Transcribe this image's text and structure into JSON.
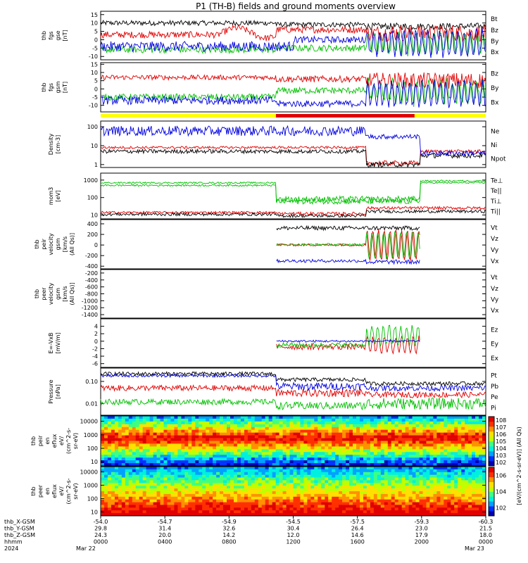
{
  "chart_data": {
    "type": "line",
    "title": "P1 (TH-B) fields and ground moments overview",
    "x_ticks": [
      {
        "hhmm": "0000",
        "x": "-54.0",
        "y": "29.8",
        "z": "24.3"
      },
      {
        "hhmm": "0400",
        "x": "-54.7",
        "y": "31.4",
        "z": "20.0"
      },
      {
        "hhmm": "0800",
        "x": "-54.9",
        "y": "32.6",
        "z": "14.2"
      },
      {
        "hhmm": "1200",
        "x": "-54.5",
        "y": "30.4",
        "z": "12.0"
      },
      {
        "hhmm": "1600",
        "x": "-57.5",
        "y": "26.4",
        "z": "14.6"
      },
      {
        "hhmm": "2000",
        "x": "-59.3",
        "y": "23.0",
        "z": "17.9"
      },
      {
        "hhmm": "0000",
        "x": "-60.3",
        "y": "21.5",
        "z": "18.0"
      }
    ],
    "row_labels": [
      "thb_X-GSM",
      "thb_Y-GSM",
      "thb_Z-GSM",
      "hhmm",
      "2024"
    ],
    "date_start": "Mar 22",
    "date_end": "Mar 23",
    "panels": [
      {
        "ylabel": [
          "thb",
          "fgs",
          "gse",
          "[nT]"
        ],
        "yticks": [
          "15",
          "10",
          "5",
          "0",
          "-5",
          "-10"
        ],
        "ylim": [
          -12,
          17
        ],
        "scale": "linear",
        "legend": [
          {
            "name": "Bt",
            "color": "#000000"
          },
          {
            "name": "Bz",
            "color": "#e00000"
          },
          {
            "name": "By",
            "color": "#00c000"
          },
          {
            "name": "Bx",
            "color": "#0000e0"
          }
        ]
      },
      {
        "ylabel": [
          "thb",
          "fgs",
          "gsm",
          "[nT]"
        ],
        "yticks": [
          "15",
          "10",
          "5",
          "0",
          "-5",
          "-10"
        ],
        "ylim": [
          -14,
          16
        ],
        "scale": "linear",
        "legend": [
          {
            "name": "Bz",
            "color": "#e00000"
          },
          {
            "name": "By",
            "color": "#00c000"
          },
          {
            "name": "Bx",
            "color": "#0000e0"
          }
        ]
      },
      {
        "ylabel": [
          "Density",
          "[cm-3]"
        ],
        "yticks": [
          "100",
          "10",
          "1"
        ],
        "ylim": [
          0.7,
          200
        ],
        "scale": "log",
        "legend": [
          {
            "name": "Ne",
            "color": "#e00000"
          },
          {
            "name": "Ni",
            "color": "#000000"
          },
          {
            "name": "Npot",
            "color": "#0000e0"
          }
        ]
      },
      {
        "ylabel": [
          "mom3",
          "[eV]"
        ],
        "yticks": [
          "1000",
          "100",
          "10"
        ],
        "ylim": [
          6,
          2500
        ],
        "scale": "log",
        "legend": [
          {
            "name": "Te⊥",
            "color": "#e00000"
          },
          {
            "name": "Te||",
            "color": "#000000"
          },
          {
            "name": "Ti⊥",
            "color": "#00c000"
          },
          {
            "name": "Ti||",
            "color": "#00c000"
          }
        ]
      },
      {
        "ylabel": [
          "thb",
          "peir",
          "velocity",
          "gsm",
          "[km/s",
          "(All Qs)]"
        ],
        "yticks": [
          "400",
          "200",
          "0",
          "-200",
          "-400"
        ],
        "ylim": [
          -450,
          480
        ],
        "scale": "linear",
        "legend": [
          {
            "name": "Vt",
            "color": "#000000"
          },
          {
            "name": "Vz",
            "color": "#e00000"
          },
          {
            "name": "Vy",
            "color": "#00c000"
          },
          {
            "name": "Vx",
            "color": "#0000e0"
          }
        ]
      },
      {
        "ylabel": [
          "thb",
          "peer",
          "velocity",
          "gsm",
          "[km/s",
          "(All Qs)]"
        ],
        "yticks": [
          "-200",
          "-400",
          "-600",
          "-800",
          "-1000",
          "-1200",
          "-1400"
        ],
        "ylim": [
          -1500,
          -100
        ],
        "scale": "linear",
        "legend": [
          {
            "name": "Vt",
            "color": "#000000"
          },
          {
            "name": "Vz",
            "color": "#e00000"
          },
          {
            "name": "Vy",
            "color": "#00c000"
          },
          {
            "name": "Vx",
            "color": "#0000e0"
          }
        ]
      },
      {
        "ylabel": [
          "E=-VxB",
          "[mV/m]"
        ],
        "yticks": [
          "4",
          "2",
          "0",
          "-2",
          "-4",
          "-6"
        ],
        "ylim": [
          -7,
          6
        ],
        "scale": "linear",
        "legend": [
          {
            "name": "Ez",
            "color": "#e00000"
          },
          {
            "name": "Ey",
            "color": "#00c000"
          },
          {
            "name": "Ex",
            "color": "#0000e0"
          }
        ]
      },
      {
        "ylabel": [
          "Pressure",
          "[nPa]"
        ],
        "yticks": [
          "0.10",
          "0.01"
        ],
        "ylim": [
          0.003,
          0.4
        ],
        "scale": "log",
        "legend": [
          {
            "name": "Pt",
            "color": "#000000"
          },
          {
            "name": "Pb",
            "color": "#e00000"
          },
          {
            "name": "Pe",
            "color": "#00c000"
          },
          {
            "name": "Pi",
            "color": "#0000e0"
          }
        ]
      },
      {
        "ylabel": [
          "thb",
          "peir",
          "en",
          "eflux",
          "eV/",
          "(cm^2-s-",
          "sr-eV)"
        ],
        "yticks": [
          "10000",
          "1000",
          "100",
          "10"
        ],
        "ylim": [
          5,
          25000
        ],
        "scale": "log",
        "spectrogram": true
      },
      {
        "ylabel": [
          "thb",
          "peer",
          "en",
          "eflux",
          "eV/",
          "(cm^2-s-",
          "sr-eV)"
        ],
        "yticks": [
          "10000",
          "1000",
          "100",
          "10"
        ],
        "ylim": [
          5,
          25000
        ],
        "scale": "log",
        "spectrogram": true
      }
    ],
    "colorbar": {
      "label": "[eV/(cm^2-s-sr-eV)] (All Qs)",
      "upper_ticks": [
        "10^8",
        "10^7",
        "10^6",
        "10^5",
        "10^4",
        "10^3",
        "10^2"
      ],
      "lower_ticks": [
        "10^6",
        "10^4",
        "10^2"
      ]
    },
    "status_bar": {
      "colors": [
        "#ffff00",
        "#e00000"
      ]
    }
  }
}
